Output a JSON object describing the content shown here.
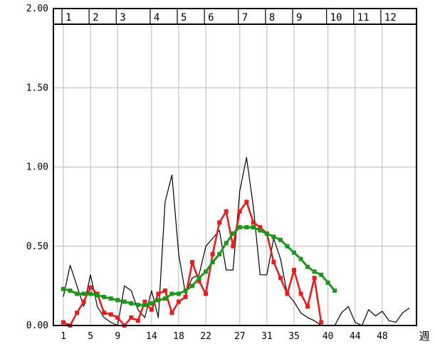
{
  "chart_data": {
    "type": "line",
    "title": "",
    "xlabel": "週",
    "ylabel": "",
    "xlim": [
      1,
      52
    ],
    "ylim": [
      0,
      2.0
    ],
    "grid": true,
    "y_ticks": [
      {
        "value": 0.0,
        "label": "0.00"
      },
      {
        "value": 0.5,
        "label": "0.50"
      },
      {
        "value": 1.0,
        "label": "1.00"
      },
      {
        "value": 1.5,
        "label": "1.50"
      },
      {
        "value": 2.0,
        "label": "2.00"
      }
    ],
    "x_ticks": [
      {
        "value": 1,
        "label": "1"
      },
      {
        "value": 5,
        "label": "5"
      },
      {
        "value": 9,
        "label": "9"
      },
      {
        "value": 14,
        "label": "14"
      },
      {
        "value": 18,
        "label": "18"
      },
      {
        "value": 22,
        "label": "22"
      },
      {
        "value": 27,
        "label": "27"
      },
      {
        "value": 31,
        "label": "31"
      },
      {
        "value": 35,
        "label": "35"
      },
      {
        "value": 40,
        "label": "40"
      },
      {
        "value": 44,
        "label": "44"
      },
      {
        "value": 48,
        "label": "48"
      }
    ],
    "month_labels": [
      {
        "label": "1",
        "start": 1
      },
      {
        "label": "2",
        "start": 5
      },
      {
        "label": "3",
        "start": 9
      },
      {
        "label": "4",
        "start": 14
      },
      {
        "label": "5",
        "start": 18
      },
      {
        "label": "6",
        "start": 22
      },
      {
        "label": "7",
        "start": 27
      },
      {
        "label": "8",
        "start": 31
      },
      {
        "label": "9",
        "start": 35
      },
      {
        "label": "10",
        "start": 40
      },
      {
        "label": "11",
        "start": 44
      },
      {
        "label": "12",
        "start": 48
      }
    ],
    "month_band_end": 52.5,
    "series": [
      {
        "color": "#000000",
        "marker": "none",
        "width": 1.2,
        "x": [
          1,
          2,
          3,
          4,
          5,
          6,
          7,
          8,
          9,
          10,
          11,
          12,
          13,
          14,
          15,
          16,
          17,
          18,
          19,
          20,
          21,
          22,
          23,
          24,
          25,
          26,
          27,
          28,
          29,
          30,
          31,
          32,
          33,
          34,
          35,
          36,
          37,
          38,
          39,
          40,
          41,
          42,
          43,
          44,
          45,
          46,
          47,
          48,
          49,
          50,
          51,
          52
        ],
        "y": [
          0.18,
          0.38,
          0.25,
          0.12,
          0.32,
          0.12,
          0.05,
          0.02,
          0.0,
          0.25,
          0.22,
          0.1,
          0.05,
          0.22,
          0.05,
          0.78,
          0.95,
          0.45,
          0.2,
          0.3,
          0.32,
          0.5,
          0.55,
          0.6,
          0.35,
          0.35,
          0.85,
          1.06,
          0.75,
          0.32,
          0.32,
          0.55,
          0.42,
          0.2,
          0.15,
          0.08,
          0.05,
          0.03,
          0.0,
          0.0,
          0.0,
          0.08,
          0.12,
          0.02,
          0.0,
          0.1,
          0.06,
          0.09,
          0.03,
          0.02,
          0.08,
          0.11
        ]
      },
      {
        "color": "#e61e1e",
        "marker": "square",
        "width": 2.6,
        "x": [
          1,
          2,
          3,
          4,
          5,
          6,
          7,
          8,
          9,
          10,
          11,
          12,
          13,
          14,
          15,
          16,
          17,
          18,
          19,
          20,
          21,
          22,
          23,
          24,
          25,
          26,
          27,
          28,
          29,
          30,
          31,
          32,
          33,
          34,
          35,
          36,
          37,
          38,
          39
        ],
        "y": [
          0.02,
          0.0,
          0.08,
          0.15,
          0.24,
          0.2,
          0.08,
          0.07,
          0.05,
          0.0,
          0.05,
          0.03,
          0.15,
          0.1,
          0.2,
          0.22,
          0.08,
          0.15,
          0.18,
          0.4,
          0.28,
          0.2,
          0.45,
          0.65,
          0.72,
          0.5,
          0.72,
          0.78,
          0.65,
          0.62,
          0.58,
          0.4,
          0.3,
          0.2,
          0.35,
          0.2,
          0.12,
          0.3,
          0.02
        ]
      },
      {
        "color": "#1e961e",
        "marker": "square",
        "width": 3.0,
        "x": [
          1,
          2,
          3,
          4,
          5,
          6,
          7,
          8,
          9,
          10,
          11,
          12,
          13,
          14,
          15,
          16,
          17,
          18,
          19,
          20,
          21,
          22,
          23,
          24,
          25,
          26,
          27,
          28,
          29,
          30,
          31,
          32,
          33,
          34,
          35,
          36,
          37,
          38,
          39,
          40,
          41
        ],
        "y": [
          0.23,
          0.22,
          0.2,
          0.2,
          0.2,
          0.19,
          0.18,
          0.17,
          0.16,
          0.15,
          0.14,
          0.13,
          0.13,
          0.14,
          0.16,
          0.17,
          0.2,
          0.2,
          0.22,
          0.25,
          0.3,
          0.34,
          0.4,
          0.45,
          0.52,
          0.58,
          0.62,
          0.62,
          0.62,
          0.6,
          0.58,
          0.56,
          0.54,
          0.5,
          0.46,
          0.42,
          0.37,
          0.34,
          0.32,
          0.27,
          0.22
        ]
      }
    ]
  }
}
